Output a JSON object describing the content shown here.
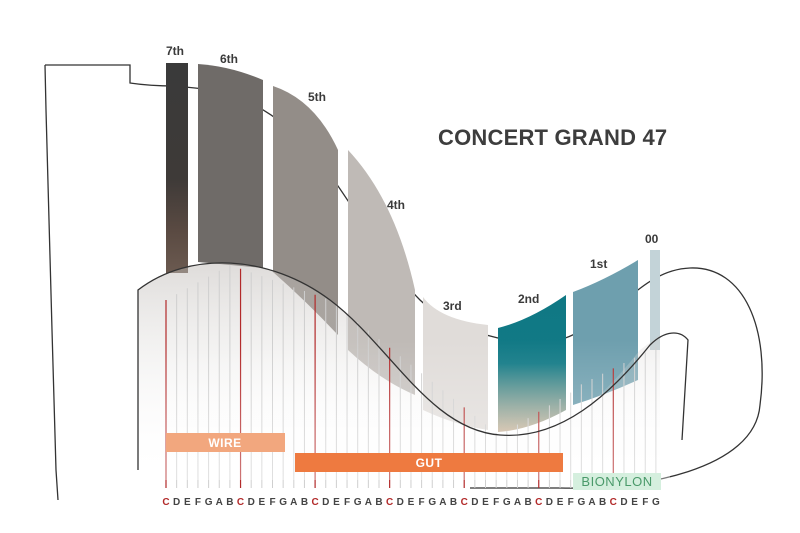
{
  "title": "CONCERT GRAND 47",
  "octaves": [
    {
      "label": "7th",
      "fill": "#3a3a3a"
    },
    {
      "label": "6th",
      "fill": "#6f6b68"
    },
    {
      "label": "5th",
      "fill": "#938d88"
    },
    {
      "label": "4th",
      "fill": "#bfbab6"
    },
    {
      "label": "3rd",
      "fill": "#e0dcd9"
    },
    {
      "label": "2nd",
      "fill": "#127a86"
    },
    {
      "label": "1st",
      "fill": "#6e9fae"
    },
    {
      "label": "00",
      "fill": "#c3d3d8"
    }
  ],
  "bands": {
    "wire": {
      "label": "WIRE",
      "color": "#f2a77e"
    },
    "gut": {
      "label": "GUT",
      "color": "#ee7a40"
    },
    "bionylon": {
      "label": "BIONYLON",
      "color": "#d5efde"
    }
  },
  "notes": [
    "C",
    "D",
    "E",
    "F",
    "G",
    "A",
    "B",
    "C",
    "D",
    "E",
    "F",
    "G",
    "A",
    "B",
    "C",
    "D",
    "E",
    "F",
    "G",
    "A",
    "B",
    "C",
    "D",
    "E",
    "F",
    "G",
    "A",
    "B",
    "C",
    "D",
    "E",
    "F",
    "G",
    "A",
    "B",
    "C",
    "D",
    "E",
    "F",
    "G",
    "A",
    "B",
    "C",
    "D",
    "E",
    "F",
    "G"
  ],
  "colors": {
    "c_string": "#b22a2a",
    "string": "#cfcfcf",
    "outline": "#333333"
  }
}
